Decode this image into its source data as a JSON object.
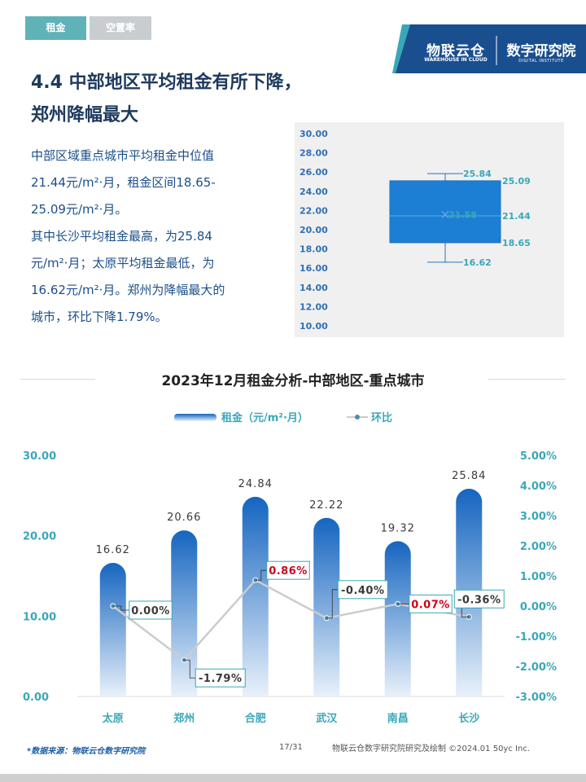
{
  "tabs": [
    {
      "label": "租金"
    },
    {
      "label": "空置率"
    }
  ],
  "brand": {
    "name": "物联云仓",
    "sub": "WAREHOUSE IN CLOUD",
    "institute": "数字研究院",
    "institute_sub": "DIGITAL INSTITUTE"
  },
  "title": {
    "line1": "4.4 中部地区平均租金有所下降，",
    "line2": "郑州降幅最大"
  },
  "body": {
    "lines": [
      "中部区域重点城市平均租金中位值",
      "21.44元/m²·月，租金区间18.65-",
      "25.09元/m²·月。",
      "其中长沙平均租金最高，为25.84",
      "元/m²·月；太原平均租金最低，为",
      "16.62元/m²·月。郑州为降幅最大的",
      "城市，环比下降1.79%。"
    ]
  },
  "boxplot": {
    "ticks": [
      "30.00",
      "28.00",
      "26.00",
      "24.00",
      "22.00",
      "20.00",
      "18.00",
      "16.00",
      "14.00",
      "12.00",
      "10.00"
    ],
    "tick_values": [
      30,
      28,
      26,
      24,
      22,
      20,
      18,
      16,
      14,
      12,
      10
    ],
    "max": 25.84,
    "q3": 25.09,
    "median": 21.44,
    "mean": 21.58,
    "q1": 18.65,
    "min": 16.62,
    "max_label": "25.84",
    "q3_label": "25.09",
    "median_label": "21.44",
    "mean_label": "21.58",
    "q1_label": "18.65",
    "min_label": "16.62",
    "box_color": "#1c7fd3",
    "whisker_color": "#2f6fb5"
  },
  "chart_data": {
    "type": "bar",
    "title": "2023年12月租金分析-中部地区-重点城市",
    "categories": [
      "太原",
      "郑州",
      "合肥",
      "武汉",
      "南昌",
      "长沙"
    ],
    "series": [
      {
        "name": "租金（元/m²·月）",
        "type": "bar",
        "axis": "left",
        "values": [
          16.62,
          20.66,
          24.84,
          22.22,
          19.32,
          25.84
        ],
        "labels": [
          "16.62",
          "20.66",
          "24.84",
          "22.22",
          "19.32",
          "25.84"
        ]
      },
      {
        "name": "环比",
        "type": "line",
        "axis": "right",
        "values": [
          0.0,
          -1.79,
          0.86,
          -0.4,
          0.07,
          -0.36
        ],
        "labels": [
          "0.00%",
          "-1.79%",
          "0.86%",
          "-0.40%",
          "0.07%",
          "-0.36%"
        ]
      }
    ],
    "left_axis": {
      "min": 0,
      "max": 30,
      "ticks": [
        "30.00",
        "20.00",
        "10.00",
        "0.00"
      ],
      "tick_values": [
        30,
        20,
        10,
        0
      ]
    },
    "right_axis": {
      "min": -3,
      "max": 5,
      "ticks": [
        "5.00%",
        "4.00%",
        "3.00%",
        "2.00%",
        "1.00%",
        "0.00%",
        "-1.00%",
        "-2.00%",
        "-3.00%"
      ],
      "tick_values": [
        5,
        4,
        3,
        2,
        1,
        0,
        -1,
        -2,
        -3
      ]
    },
    "legend_position": "top",
    "colors": {
      "bar_top": "#1565c0",
      "bar_bottom": "#e8f1fa",
      "line": "#cccccc",
      "positive_label": "#d0021b",
      "negative_label": "#3a3a3a",
      "label_border": "#3aa7b8"
    }
  },
  "footer": {
    "source": "*数据来源：物联云仓数字研究院",
    "page": "17/31",
    "right": "物联云仓数字研究院研究及绘制  ©2024.01 50yc Inc."
  }
}
